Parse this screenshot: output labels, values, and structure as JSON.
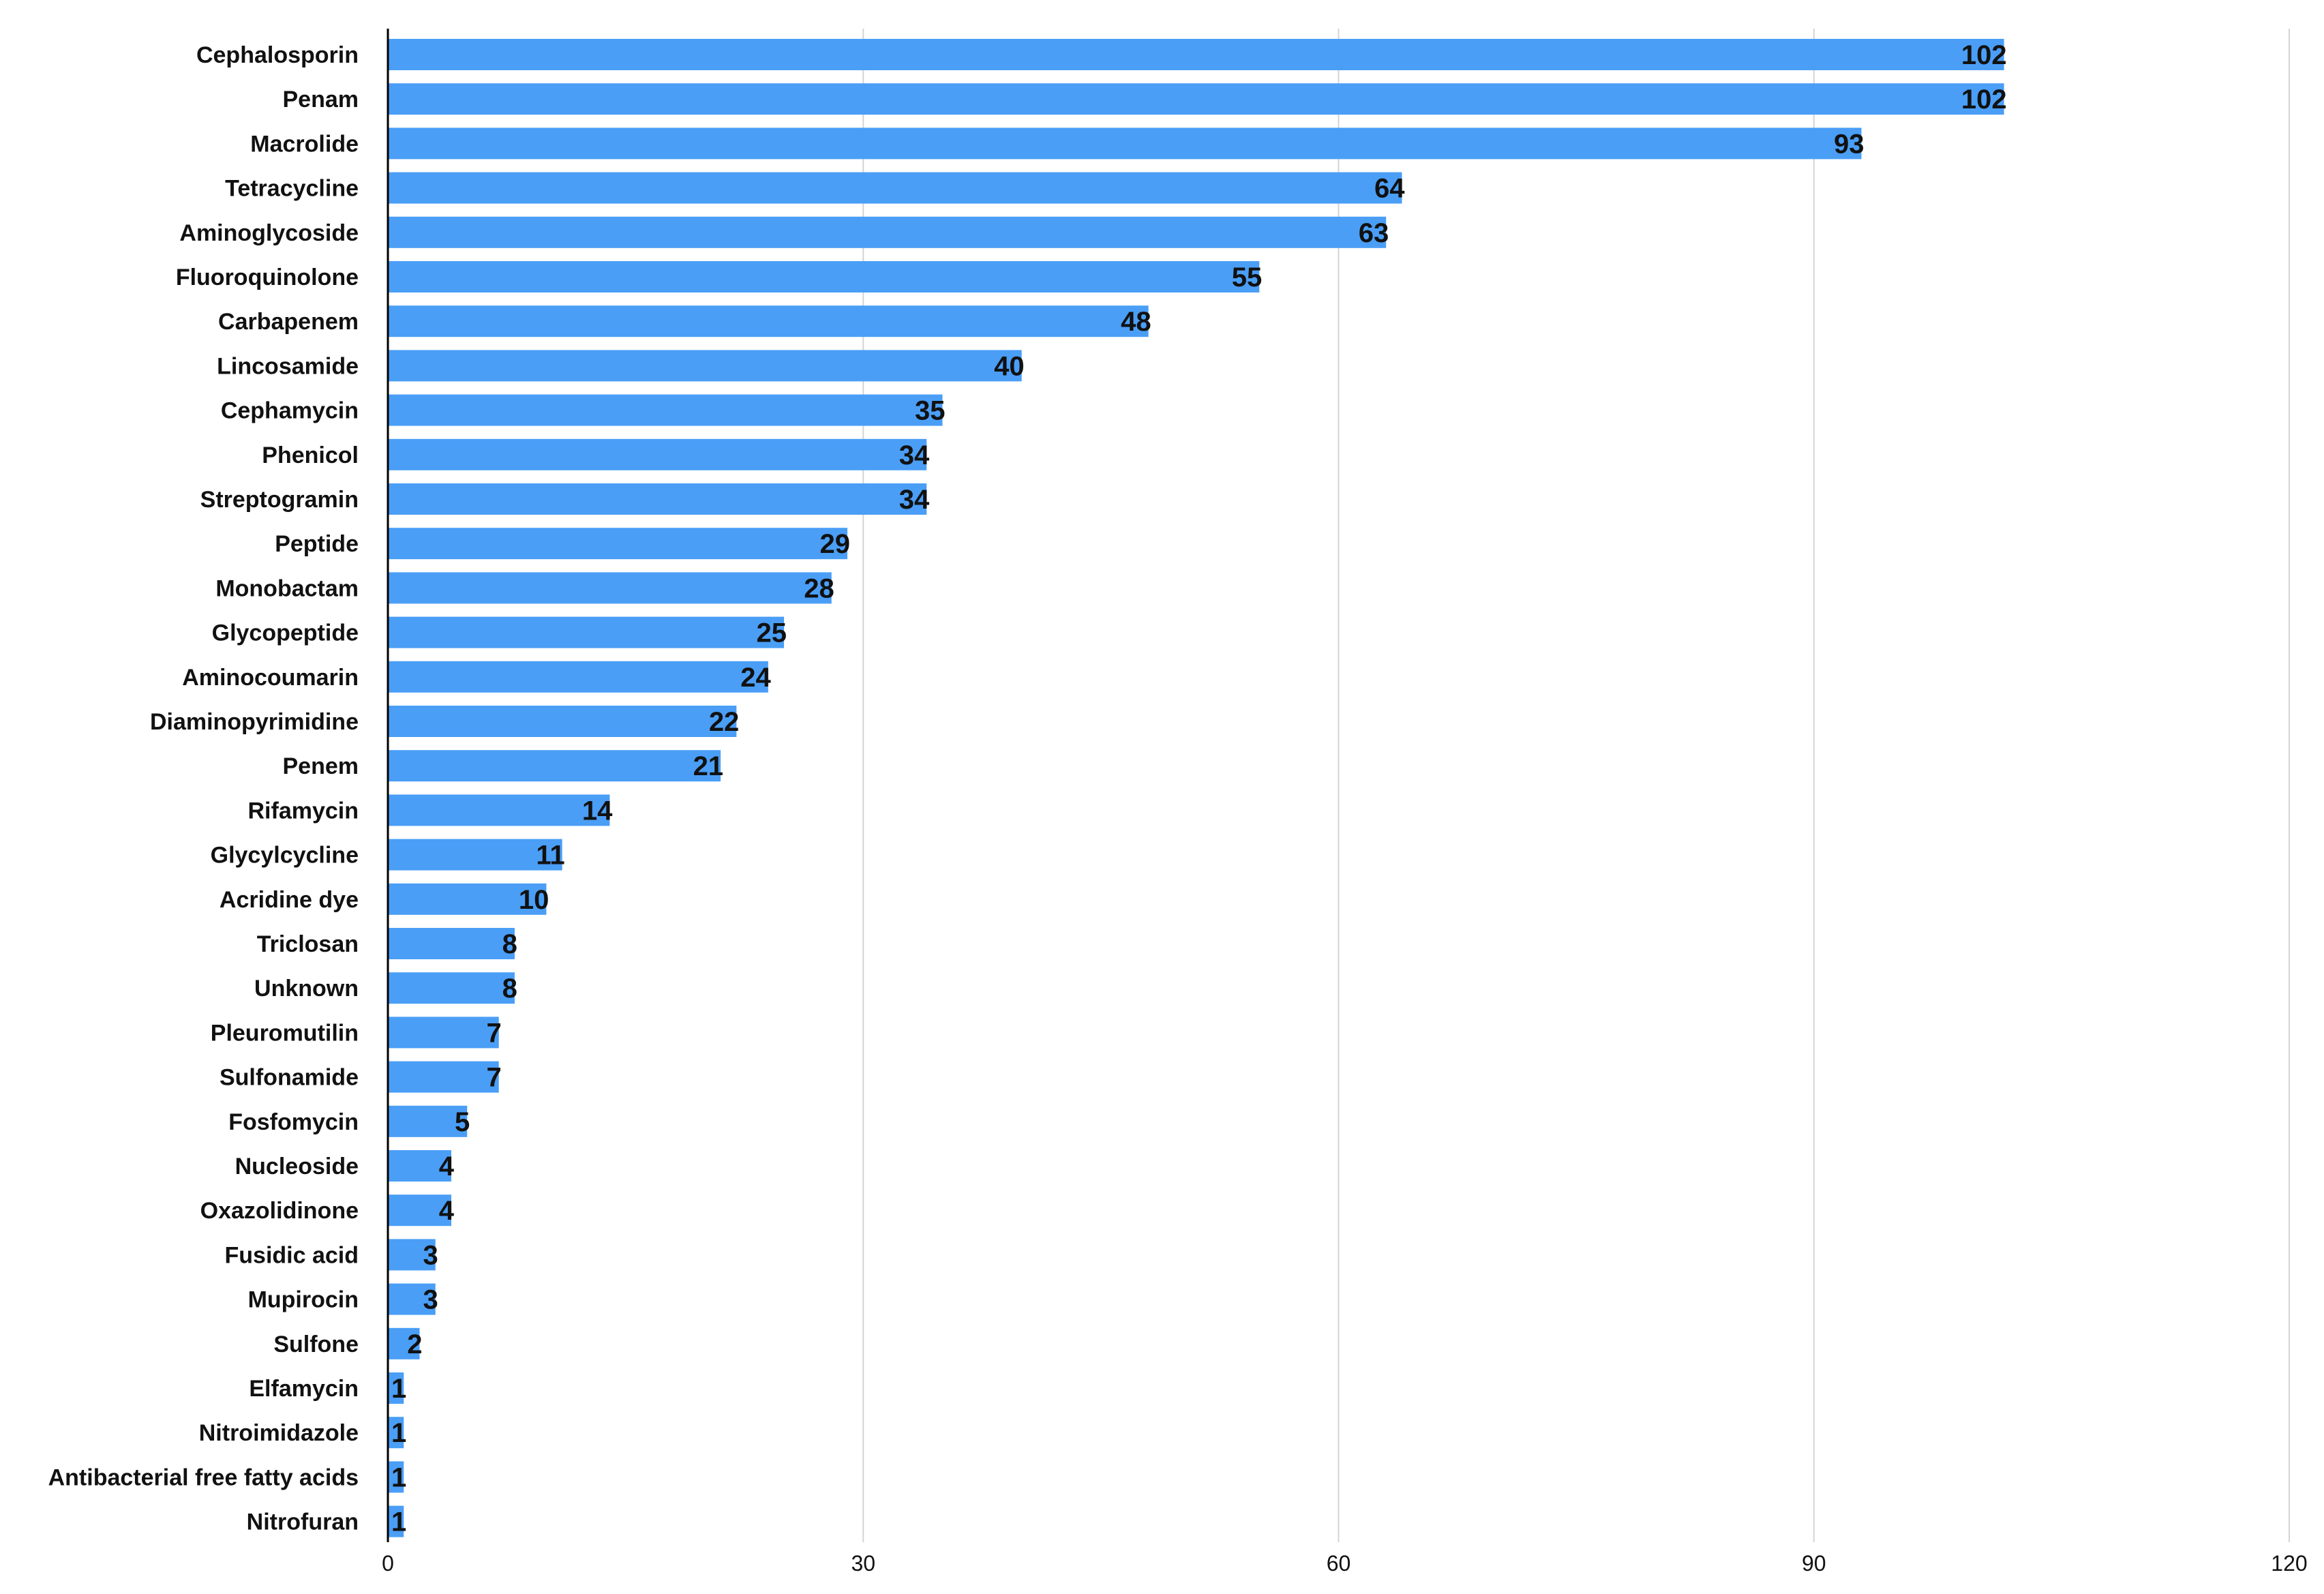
{
  "chart_data": {
    "type": "bar",
    "orientation": "horizontal",
    "categories": [
      "Cephalosporin",
      "Penam",
      "Macrolide",
      "Tetracycline",
      "Aminoglycoside",
      "Fluoroquinolone",
      "Carbapenem",
      "Lincosamide",
      "Cephamycin",
      "Phenicol",
      "Streptogramin",
      "Peptide",
      "Monobactam",
      "Glycopeptide",
      "Aminocoumarin",
      "Diaminopyrimidine",
      "Penem",
      "Rifamycin",
      "Glycylcycline",
      "Acridine dye",
      "Triclosan",
      "Unknown",
      "Pleuromutilin",
      "Sulfonamide",
      "Fosfomycin",
      "Nucleoside",
      "Oxazolidinone",
      "Fusidic acid",
      "Mupirocin",
      "Sulfone",
      "Elfamycin",
      "Nitroimidazole",
      "Antibacterial free fatty acids",
      "Nitrofuran"
    ],
    "values": [
      102,
      102,
      93,
      64,
      63,
      55,
      48,
      40,
      35,
      34,
      34,
      29,
      28,
      25,
      24,
      22,
      21,
      14,
      11,
      10,
      8,
      8,
      7,
      7,
      5,
      4,
      4,
      3,
      3,
      2,
      1,
      1,
      1,
      1
    ],
    "xlim": [
      0,
      120
    ],
    "xticks": [
      0,
      30,
      60,
      90,
      120
    ],
    "grid": "vertical",
    "legend": "none",
    "data_labels": true,
    "bar_color": "#4a9ef6",
    "grid_color": "#d4d4d4",
    "axis_color": "#000000"
  }
}
